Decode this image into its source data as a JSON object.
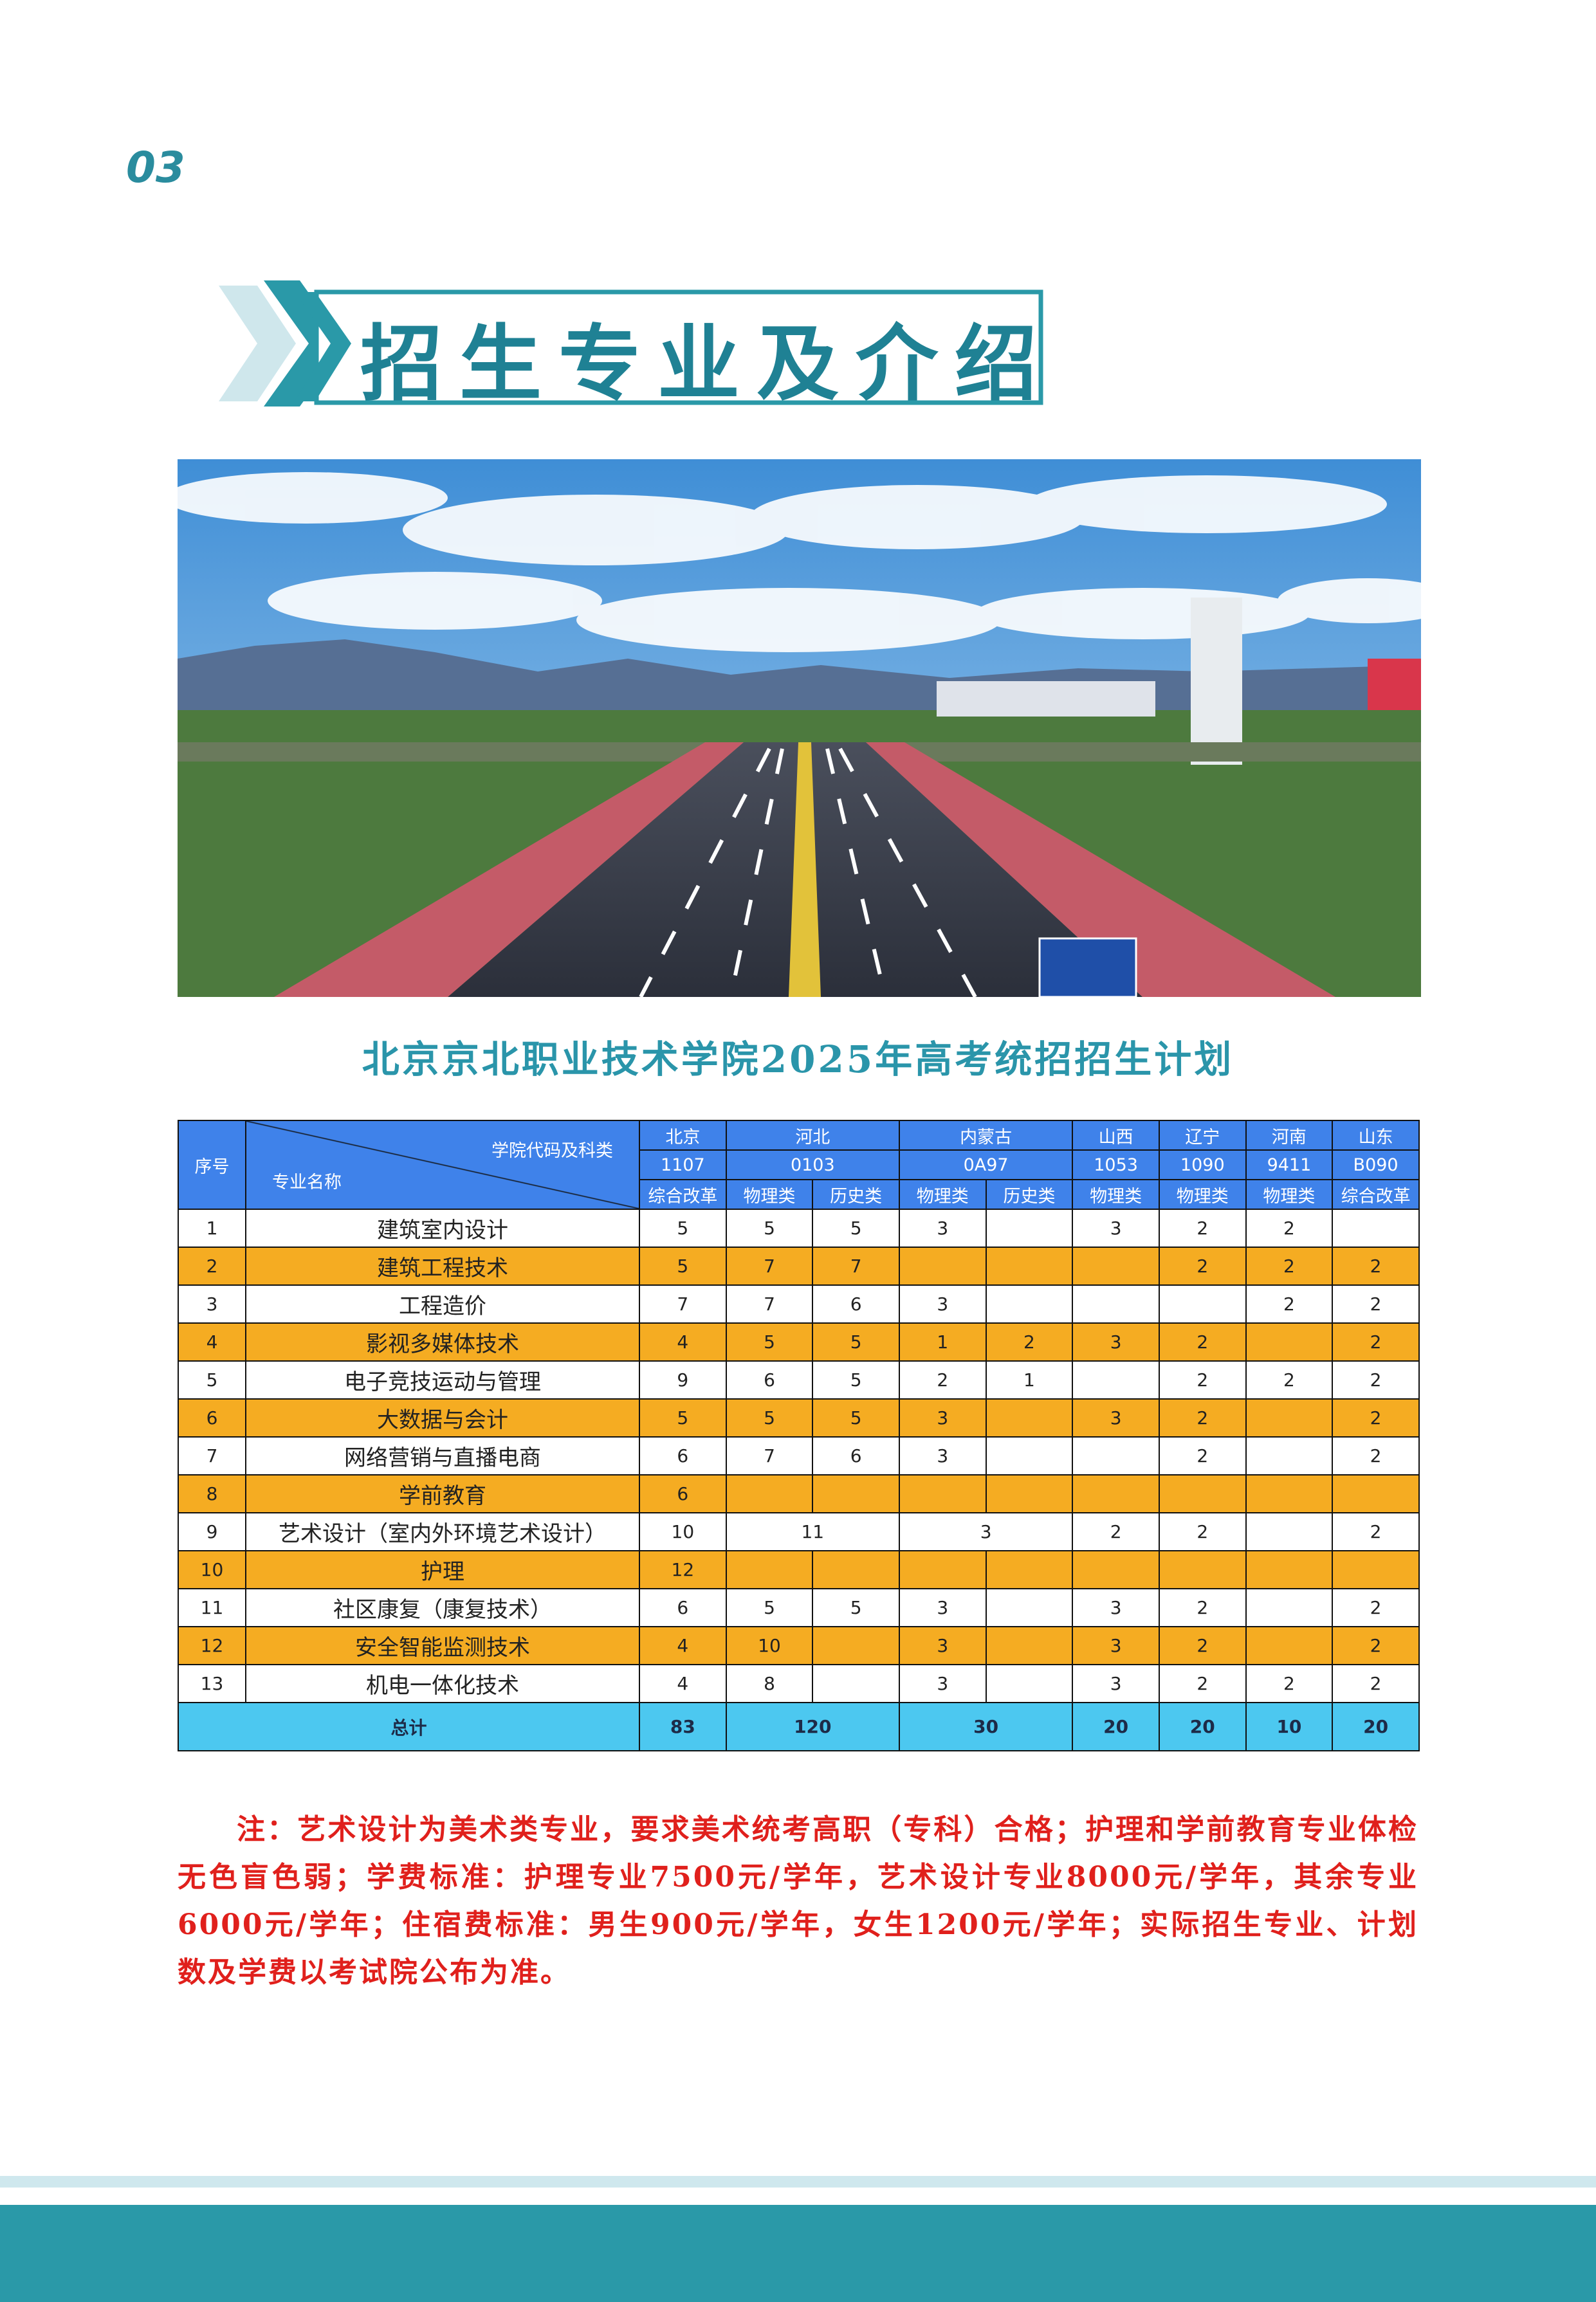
{
  "page_number": "03",
  "section_title": "招生专业及介绍",
  "table_title": "北京京北职业技术学院2025年高考统招招生计划",
  "table": {
    "header": {
      "index": "序号",
      "code_label": "学院代码及科类",
      "major_label": "专业名称",
      "provinces": [
        {
          "name": "北京",
          "code": "1107",
          "subjects": [
            "综合改革"
          ]
        },
        {
          "name": "河北",
          "code": "0103",
          "subjects": [
            "物理类",
            "历史类"
          ]
        },
        {
          "name": "内蒙古",
          "code": "0A97",
          "subjects": [
            "物理类",
            "历史类"
          ]
        },
        {
          "name": "山西",
          "code": "1053",
          "subjects": [
            "物理类"
          ]
        },
        {
          "name": "辽宁",
          "code": "1090",
          "subjects": [
            "物理类"
          ]
        },
        {
          "name": "河南",
          "code": "9411",
          "subjects": [
            "物理类"
          ]
        },
        {
          "name": "山东",
          "code": "B090",
          "subjects": [
            "综合改革"
          ]
        }
      ]
    },
    "rows": [
      {
        "index": 1,
        "name": "建筑室内设计",
        "cells": [
          5,
          5,
          5,
          3,
          null,
          3,
          2,
          2,
          null
        ]
      },
      {
        "index": 2,
        "name": "建筑工程技术",
        "cells": [
          5,
          7,
          7,
          null,
          null,
          null,
          2,
          2,
          2
        ]
      },
      {
        "index": 3,
        "name": "工程造价",
        "cells": [
          7,
          7,
          6,
          3,
          null,
          null,
          null,
          2,
          2
        ]
      },
      {
        "index": 4,
        "name": "影视多媒体技术",
        "cells": [
          4,
          5,
          5,
          1,
          2,
          3,
          2,
          null,
          2
        ]
      },
      {
        "index": 5,
        "name": "电子竞技运动与管理",
        "cells": [
          9,
          6,
          5,
          2,
          1,
          null,
          2,
          2,
          2
        ]
      },
      {
        "index": 6,
        "name": "大数据与会计",
        "cells": [
          5,
          5,
          5,
          3,
          null,
          3,
          2,
          null,
          2
        ]
      },
      {
        "index": 7,
        "name": "网络营销与直播电商",
        "cells": [
          6,
          7,
          6,
          3,
          null,
          null,
          2,
          null,
          2
        ]
      },
      {
        "index": 8,
        "name": "学前教育",
        "cells": [
          6,
          null,
          null,
          null,
          null,
          null,
          null,
          null,
          null
        ]
      },
      {
        "index": 9,
        "name": "艺术设计（室内外环境艺术设计）",
        "cells": [
          10,
          11,
          3,
          2,
          2,
          null,
          2
        ]
      },
      {
        "index": 10,
        "name": "护理",
        "cells": [
          12,
          null,
          null,
          null,
          null,
          null,
          null,
          null,
          null
        ]
      },
      {
        "index": 11,
        "name": "社区康复（康复技术）",
        "cells": [
          6,
          5,
          5,
          3,
          null,
          3,
          2,
          null,
          2
        ]
      },
      {
        "index": 12,
        "name": "安全智能监测技术",
        "cells": [
          4,
          10,
          null,
          3,
          null,
          3,
          2,
          null,
          2
        ]
      },
      {
        "index": 13,
        "name": "机电一体化技术",
        "cells": [
          4,
          8,
          null,
          3,
          null,
          3,
          2,
          2,
          2
        ]
      }
    ],
    "total": {
      "label": "总计",
      "cells": [
        83,
        120,
        30,
        20,
        20,
        10,
        20
      ]
    }
  },
  "note": "注：艺术设计为美术类专业，要求美术统考高职（专科）合格；护理和学前教育专业体检无色盲色弱；学费标准：护理专业7500元/学年，艺术设计专业8000元/学年，其余专业6000元/学年；住宿费标准：男生900元/学年，女生1200元/学年；实际招生专业、计划数及学费以考试院公布为准。"
}
